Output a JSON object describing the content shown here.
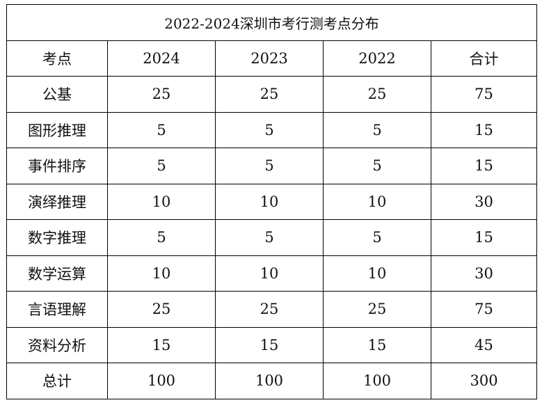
{
  "title": "2022-2024深圳市考行测考点分布",
  "headers": [
    "考点",
    "2024",
    "2023",
    "2022",
    "合计"
  ],
  "rows": [
    {
      "label": "公基",
      "values": [
        "25",
        "25",
        "25",
        "75"
      ]
    },
    {
      "label": "图形推理",
      "values": [
        "5",
        "5",
        "5",
        "15"
      ]
    },
    {
      "label": "事件排序",
      "values": [
        "5",
        "5",
        "5",
        "15"
      ]
    },
    {
      "label": "演绎推理",
      "values": [
        "10",
        "10",
        "10",
        "30"
      ]
    },
    {
      "label": "数字推理",
      "values": [
        "5",
        "5",
        "5",
        "15"
      ]
    },
    {
      "label": "数学运算",
      "values": [
        "10",
        "10",
        "10",
        "30"
      ]
    },
    {
      "label": "言语理解",
      "values": [
        "25",
        "25",
        "25",
        "75"
      ]
    },
    {
      "label": "资料分析",
      "values": [
        "15",
        "15",
        "15",
        "45"
      ]
    },
    {
      "label": "总计",
      "values": [
        "100",
        "100",
        "100",
        "300"
      ]
    }
  ],
  "colors": {
    "border": "#000000",
    "text": "#111111",
    "background": "#ffffff"
  }
}
